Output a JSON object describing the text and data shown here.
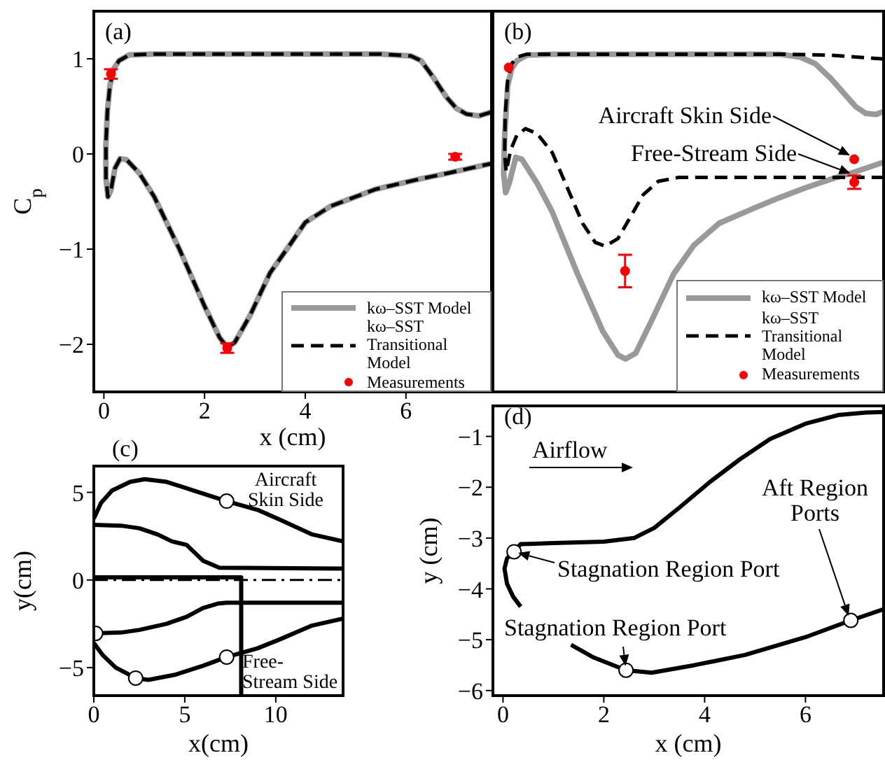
{
  "chart_data": [
    {
      "type": "line",
      "title": "(a)",
      "xlabel": "x (cm)",
      "ylabel": "C$_{p}$",
      "xlim": [
        -0.2,
        7.7
      ],
      "xticks": [
        0,
        2,
        4,
        6
      ],
      "ylim": [
        -2.5,
        1.5
      ],
      "yticks": [
        {
          "value": -2,
          "label": "−2"
        },
        {
          "value": -1,
          "label": "−1"
        },
        0,
        1
      ],
      "legend": "bottom right",
      "series": [
        {
          "name": "kω–SST Model",
          "color": "#999999",
          "line_style": "solid",
          "x": [
            7.7,
            7.45,
            7.2,
            7.0,
            6.8,
            6.55,
            6.3,
            6.1,
            5.5,
            3.0,
            1.0,
            0.5,
            0.3,
            0.2,
            0.12,
            0.07,
            0.04,
            0.04,
            0.08,
            0.14,
            0.22,
            0.32,
            0.45,
            0.7,
            1.0,
            1.5,
            2.0,
            2.3,
            2.45,
            2.6,
            2.9,
            3.3,
            3.7,
            4.0,
            4.5,
            5.4,
            6.3,
            6.85,
            7.7
          ],
          "values": [
            0.44,
            0.4,
            0.42,
            0.48,
            0.6,
            0.8,
            0.98,
            1.03,
            1.05,
            1.05,
            1.05,
            1.04,
            0.98,
            0.9,
            0.72,
            0.45,
            0.1,
            -0.25,
            -0.45,
            -0.38,
            -0.15,
            -0.05,
            -0.06,
            -0.2,
            -0.45,
            -1.0,
            -1.6,
            -1.93,
            -2.03,
            -1.98,
            -1.7,
            -1.25,
            -0.95,
            -0.72,
            -0.55,
            -0.37,
            -0.26,
            -0.2,
            -0.1
          ]
        },
        {
          "name": "kω–SST\nTransitional Model",
          "color": "#000000",
          "line_style": "dashed",
          "x": [
            7.7,
            7.45,
            7.2,
            7.0,
            6.8,
            6.55,
            6.3,
            6.1,
            5.5,
            3.0,
            1.0,
            0.5,
            0.3,
            0.2,
            0.12,
            0.07,
            0.04,
            0.04,
            0.08,
            0.14,
            0.22,
            0.32,
            0.45,
            0.7,
            1.0,
            1.5,
            2.0,
            2.3,
            2.45,
            2.6,
            2.9,
            3.3,
            3.7,
            4.0,
            4.5,
            5.4,
            6.3,
            6.85,
            7.7
          ],
          "values": [
            0.44,
            0.4,
            0.42,
            0.48,
            0.6,
            0.8,
            0.98,
            1.03,
            1.05,
            1.05,
            1.05,
            1.04,
            0.98,
            0.9,
            0.72,
            0.45,
            0.1,
            -0.25,
            -0.45,
            -0.38,
            -0.15,
            -0.05,
            -0.06,
            -0.2,
            -0.45,
            -1.0,
            -1.6,
            -1.93,
            -2.03,
            -1.98,
            -1.7,
            -1.25,
            -0.95,
            -0.72,
            -0.55,
            -0.37,
            -0.26,
            -0.2,
            -0.1
          ]
        },
        {
          "name": "Measurements",
          "type": "scatter",
          "marker": "circle",
          "color": "#ff0000",
          "x": [
            0.14,
            2.45,
            6.98
          ],
          "values": [
            0.84,
            -2.04,
            -0.03
          ],
          "errors": [
            0.05,
            0.05,
            0.03
          ]
        }
      ]
    },
    {
      "type": "line",
      "title": "(b)",
      "xlim": [
        -0.2,
        7.55
      ],
      "xticks": [
        0,
        2,
        4,
        6
      ],
      "ylim": [
        -2.5,
        1.5
      ],
      "yticks": [
        -2,
        -1,
        0,
        1
      ],
      "tick_labels": false,
      "legend": "bottom right",
      "annotations": [
        "Aircraft Skin Side",
        {
          "text": "Free-Stream Side",
          "x": 6.97,
          "y": -0.22
        }
      ],
      "series": [
        {
          "name": "kω–SST Model",
          "color": "#999999",
          "line_style": "solid",
          "x": [
            7.55,
            7.4,
            7.2,
            7.0,
            6.8,
            6.5,
            6.2,
            5.9,
            5.5,
            1.0,
            0.5,
            0.3,
            0.2,
            0.12,
            0.06,
            0.04,
            0.08,
            0.15,
            0.28,
            0.4,
            0.7,
            1.0,
            1.5,
            2.0,
            2.3,
            2.45,
            2.65,
            3.0,
            3.4,
            3.8,
            4.3,
            5.0,
            5.5,
            6.0,
            6.5,
            7.0,
            7.55
          ],
          "values": [
            0.45,
            0.42,
            0.43,
            0.5,
            0.62,
            0.8,
            0.95,
            1.02,
            1.05,
            1.05,
            1.04,
            0.98,
            0.9,
            0.72,
            0.2,
            -0.2,
            -0.4,
            -0.3,
            -0.03,
            -0.05,
            -0.3,
            -0.6,
            -1.25,
            -1.85,
            -2.1,
            -2.14,
            -2.08,
            -1.7,
            -1.25,
            -0.95,
            -0.72,
            -0.56,
            -0.45,
            -0.35,
            -0.26,
            -0.18,
            -0.08
          ]
        },
        {
          "name": "kω–SST\nTransitional Model",
          "color": "#000000",
          "line_style": "dashed",
          "x": [
            7.55,
            7.0,
            6.5,
            5.5,
            1.0,
            0.5,
            0.3,
            0.2,
            0.12,
            0.07,
            0.06,
            0.09,
            0.18,
            0.3,
            0.47,
            0.7,
            1.0,
            1.3,
            1.6,
            1.85,
            2.05,
            2.3,
            2.55,
            2.8,
            3.1,
            3.5,
            7.55
          ],
          "values": [
            1.0,
            1.02,
            1.04,
            1.05,
            1.05,
            1.05,
            1.02,
            0.95,
            0.78,
            0.4,
            0.0,
            -0.18,
            0.05,
            0.2,
            0.27,
            0.22,
            0.02,
            -0.35,
            -0.72,
            -0.92,
            -0.96,
            -0.88,
            -0.65,
            -0.42,
            -0.28,
            -0.24,
            -0.24
          ]
        },
        {
          "name": "Measurements",
          "type": "scatter",
          "marker": "circle",
          "color": "#ff0000",
          "x": [
            0.14,
            2.44,
            6.97,
            6.97
          ],
          "values": [
            0.91,
            -1.22,
            -0.05,
            -0.29
          ],
          "errors": [
            null,
            0.17,
            null,
            0.07
          ]
        }
      ]
    },
    {
      "type": "line",
      "title": "(c)",
      "xlabel": "x(cm)",
      "ylabel": "y(cm)",
      "xlim": [
        0,
        13.7
      ],
      "xticks": [
        0,
        5,
        10
      ],
      "ylim": [
        -6.6,
        6.5
      ],
      "yticks": [
        {
          "value": -5,
          "label": "−5"
        },
        0,
        5
      ],
      "annotations": [
        "Aircraft\nSkin Side",
        "Free-\nStream Side"
      ],
      "ref_lines": [
        {
          "axis": "y",
          "value": 0,
          "line_style": "dashed",
          "color": "#000000"
        }
      ],
      "series": [
        {
          "color": "#000000",
          "x": [
            0,
            0.4,
            1,
            2,
            2.8,
            4,
            5.5,
            7.3,
            9,
            10.2,
            12,
            13.7
          ],
          "values": [
            3.5,
            4.4,
            5.1,
            5.6,
            5.75,
            5.6,
            5.1,
            4.5,
            4.0,
            3.45,
            2.6,
            2.2
          ]
        },
        {
          "color": "#000000",
          "x": [
            0,
            1.5,
            2.5,
            3.5,
            4.3,
            5.1,
            6.0,
            6.9,
            13.7
          ],
          "values": [
            3.15,
            3.1,
            2.95,
            2.6,
            2.2,
            2.0,
            1.1,
            0.7,
            0.65
          ]
        },
        {
          "color": "#000000",
          "x": [
            0,
            1.5,
            2.5,
            4.0,
            5.1,
            6.0,
            6.8,
            7.3,
            13.7
          ],
          "values": [
            -3.05,
            -3.0,
            -2.85,
            -2.5,
            -2.1,
            -1.6,
            -1.35,
            -1.3,
            -1.3
          ]
        },
        {
          "color": "#000000",
          "x": [
            0,
            0.5,
            1.2,
            2.3,
            3,
            4.5,
            6,
            7.3,
            9,
            10.2,
            12,
            13.7
          ],
          "values": [
            -3.6,
            -4.3,
            -5.0,
            -5.6,
            -5.7,
            -5.4,
            -4.9,
            -4.4,
            -3.9,
            -3.4,
            -2.6,
            -2.2
          ]
        },
        {
          "color": "#000000",
          "x": [
            0,
            8.1,
            8.1
          ],
          "values": [
            0.15,
            0.15,
            -6.6
          ]
        },
        {
          "type": "scatter",
          "marker": "circle",
          "color": "#ffffff",
          "x": [
            7.3,
            0.1,
            2.3,
            7.3
          ],
          "values": [
            4.5,
            -3.05,
            -5.6,
            -4.4
          ]
        }
      ]
    },
    {
      "type": "line",
      "title": "(d)",
      "xlabel": "x (cm)",
      "ylabel": "y (cm)",
      "xlim": [
        -0.2,
        7.55
      ],
      "xticks": [
        0,
        2,
        4,
        6
      ],
      "ylim": [
        -6.1,
        -0.4
      ],
      "yticks": [
        {
          "value": -6,
          "label": "−6"
        },
        {
          "value": -5,
          "label": "−5"
        },
        {
          "value": -4,
          "label": "−4"
        },
        {
          "value": -3,
          "label": "−3"
        },
        {
          "value": -2,
          "label": "−2"
        },
        {
          "value": -1,
          "label": "−1"
        }
      ],
      "annotations": [
        "Airflow",
        {
          "text": "Stagnation Region Port",
          "x": 0.22,
          "y": -3.27
        },
        {
          "text": "Stagnation Region Port",
          "x": 2.44,
          "y": -5.6
        },
        "Aft Region\nPorts"
      ],
      "series": [
        {
          "color": "#000000",
          "x": [
            0.22,
            0.35,
            1,
            2,
            2.6,
            3.0,
            3.5,
            4.1,
            4.7,
            5.3,
            6.0,
            6.65,
            7.2,
            7.55
          ],
          "values": [
            -3.27,
            -3.12,
            -3.1,
            -3.07,
            -3.0,
            -2.8,
            -2.4,
            -1.9,
            -1.45,
            -1.05,
            -0.75,
            -0.58,
            -0.53,
            -0.52
          ]
        },
        {
          "color": "#000000",
          "x": [
            0.22,
            0.08,
            0.03,
            0.08,
            0.2,
            0.35,
            0.8,
            1.35,
            1.8,
            2.44,
            2.95,
            3.8,
            4.8,
            6.0,
            6.9,
            7.55
          ],
          "values": [
            -3.27,
            -3.4,
            -3.6,
            -3.9,
            -4.15,
            -4.35,
            null,
            -5.1,
            -5.35,
            -5.6,
            -5.65,
            -5.5,
            -5.3,
            -4.95,
            -4.62,
            -4.4
          ]
        },
        {
          "type": "scatter",
          "marker": "circle",
          "color": "#ffffff",
          "x": [
            0.22,
            2.44,
            6.9
          ],
          "values": [
            -3.27,
            -5.6,
            -4.62
          ]
        }
      ]
    }
  ]
}
